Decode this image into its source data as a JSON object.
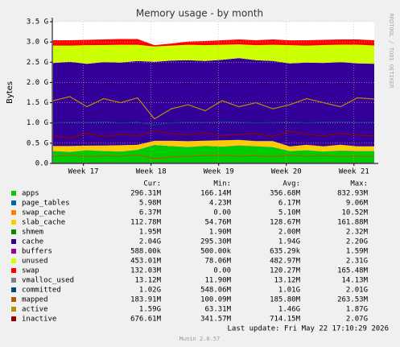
{
  "chart_data": {
    "type": "area",
    "title": "Memory usage - by month",
    "y_label": "Bytes",
    "watermark": "RRDTOOL / TOBI OETIKER",
    "x": [
      16.55,
      16.8,
      17.05,
      17.3,
      17.55,
      17.8,
      18.05,
      18.3,
      18.55,
      18.8,
      19.05,
      19.3,
      19.55,
      19.8,
      20.05,
      20.3,
      20.55,
      20.8,
      21.05,
      21.3
    ],
    "xlim": [
      16.54,
      21.3
    ],
    "xticks": [
      {
        "value": 17,
        "label": "Week 17"
      },
      {
        "value": 18,
        "label": "Week 18"
      },
      {
        "value": 19,
        "label": "Week 19"
      },
      {
        "value": 20,
        "label": "Week 20"
      },
      {
        "value": 21,
        "label": "Week 21"
      }
    ],
    "ylim": [
      0,
      3.5
    ],
    "yticks": [
      {
        "value": 0,
        "label": "0.0"
      },
      {
        "value": 0.5,
        "label": "0.5 G"
      },
      {
        "value": 1,
        "label": "1.0 G"
      },
      {
        "value": 1.5,
        "label": "1.5 G"
      },
      {
        "value": 2,
        "label": "2.0 G"
      },
      {
        "value": 2.5,
        "label": "2.5 G"
      },
      {
        "value": 3,
        "label": "3.0 G"
      },
      {
        "value": 3.5,
        "label": "3.5 G"
      }
    ],
    "grid": true,
    "legend_columns": [
      "Cur:",
      "Min:",
      "Avg:",
      "Max:"
    ],
    "series": [
      {
        "name": "apps",
        "type": "area",
        "color": "#00CC00",
        "stats": [
          "296.31M",
          "166.14M",
          "356.68M",
          "832.93M"
        ],
        "values": [
          0.3,
          0.28,
          0.32,
          0.3,
          0.29,
          0.33,
          0.45,
          0.42,
          0.4,
          0.43,
          0.41,
          0.44,
          0.42,
          0.4,
          0.3,
          0.32,
          0.29,
          0.31,
          0.3,
          0.3
        ]
      },
      {
        "name": "page_tables",
        "type": "area",
        "color": "#0066B3",
        "stats": [
          "5.98M",
          "4.23M",
          "6.17M",
          "9.06M"
        ],
        "values": [
          0.006,
          0.006,
          0.006,
          0.006,
          0.006,
          0.006,
          0.007,
          0.007,
          0.006,
          0.006,
          0.006,
          0.006,
          0.006,
          0.006,
          0.006,
          0.006,
          0.006,
          0.006,
          0.006,
          0.006
        ]
      },
      {
        "name": "swap_cache",
        "type": "area",
        "color": "#FF8000",
        "stats": [
          "6.37M",
          "0.00",
          "5.10M",
          "10.52M"
        ],
        "values": [
          0.005,
          0.005,
          0.005,
          0.006,
          0.005,
          0.005,
          0.002,
          0.003,
          0.004,
          0.005,
          0.005,
          0.005,
          0.005,
          0.005,
          0.004,
          0.005,
          0.006,
          0.006,
          0.006,
          0.006
        ]
      },
      {
        "name": "slab_cache",
        "type": "area",
        "color": "#FFCC00",
        "stats": [
          "112.78M",
          "54.76M",
          "128.67M",
          "161.88M"
        ],
        "values": [
          0.12,
          0.14,
          0.11,
          0.13,
          0.15,
          0.12,
          0.1,
          0.13,
          0.14,
          0.12,
          0.15,
          0.13,
          0.12,
          0.14,
          0.11,
          0.13,
          0.12,
          0.14,
          0.11,
          0.11
        ]
      },
      {
        "name": "shmem",
        "type": "line",
        "color": "#008F00",
        "stats": [
          "1.95M",
          "1.90M",
          "2.00M",
          "2.32M"
        ],
        "values": [
          0.002,
          0.002,
          0.002,
          0.002,
          0.002,
          0.002,
          0.002,
          0.002,
          0.002,
          0.002,
          0.002,
          0.002,
          0.002,
          0.002,
          0.002,
          0.002,
          0.002,
          0.002,
          0.002,
          0.002
        ]
      },
      {
        "name": "cache",
        "type": "area",
        "color": "#330099",
        "stats": [
          "2.04G",
          "295.30M",
          "1.94G",
          "2.20G"
        ],
        "values": [
          2.05,
          2.08,
          2.02,
          2.06,
          2.04,
          2.07,
          1.95,
          1.98,
          2.0,
          1.97,
          1.99,
          2.02,
          2.0,
          1.98,
          2.05,
          2.03,
          2.06,
          2.04,
          2.05,
          2.04
        ]
      },
      {
        "name": "buffers",
        "type": "area",
        "color": "#990099",
        "stats": [
          "588.00k",
          "500.00k",
          "635.29k",
          "1.59M"
        ],
        "values": [
          0.0006,
          0.0006,
          0.0006,
          0.0006,
          0.0006,
          0.0006,
          0.0006,
          0.0006,
          0.0006,
          0.0006,
          0.0006,
          0.0006,
          0.0006,
          0.0006,
          0.0006,
          0.0006,
          0.0006,
          0.0006,
          0.0006,
          0.0006
        ]
      },
      {
        "name": "unused",
        "type": "area",
        "color": "#CCFF00",
        "stats": [
          "453.01M",
          "78.06M",
          "482.97M",
          "2.31G"
        ],
        "values": [
          0.43,
          0.4,
          0.46,
          0.42,
          0.44,
          0.4,
          0.38,
          0.37,
          0.38,
          0.39,
          0.37,
          0.34,
          0.37,
          0.4,
          0.45,
          0.42,
          0.44,
          0.43,
          0.46,
          0.45
        ]
      },
      {
        "name": "swap",
        "type": "area",
        "color": "#FF0000",
        "stats": [
          "132.03M",
          "0.00",
          "120.27M",
          "165.48M"
        ],
        "values": [
          0.13,
          0.13,
          0.13,
          0.14,
          0.14,
          0.14,
          0.03,
          0.05,
          0.08,
          0.1,
          0.11,
          0.12,
          0.12,
          0.13,
          0.12,
          0.13,
          0.13,
          0.13,
          0.13,
          0.13
        ]
      },
      {
        "name": "vmalloc_used",
        "type": "line",
        "color": "#808080",
        "stats": [
          "13.12M",
          "11.90M",
          "13.12M",
          "14.13M"
        ],
        "values": [
          0.013,
          0.013,
          0.013,
          0.013,
          0.013,
          0.013,
          0.012,
          0.013,
          0.013,
          0.013,
          0.013,
          0.013,
          0.013,
          0.013,
          0.013,
          0.013,
          0.013,
          0.013,
          0.013,
          0.013
        ]
      },
      {
        "name": "committed",
        "type": "line",
        "color": "#00487D",
        "stats": [
          "1.02G",
          "548.06M",
          "1.01G",
          "2.01G"
        ],
        "values": [
          1.0,
          1.02,
          1.01,
          1.03,
          1.0,
          1.02,
          0.95,
          1.0,
          1.02,
          1.01,
          1.03,
          1.02,
          1.0,
          1.01,
          1.02,
          1.0,
          1.02,
          1.03,
          1.01,
          1.02
        ]
      },
      {
        "name": "mapped",
        "type": "line",
        "color": "#B35A00",
        "stats": [
          "183.91M",
          "100.09M",
          "185.80M",
          "263.53M"
        ],
        "values": [
          0.18,
          0.2,
          0.17,
          0.19,
          0.18,
          0.21,
          0.12,
          0.16,
          0.18,
          0.19,
          0.2,
          0.18,
          0.19,
          0.17,
          0.2,
          0.18,
          0.19,
          0.18,
          0.18,
          0.18
        ]
      },
      {
        "name": "active",
        "type": "line",
        "color": "#B38F00",
        "stats": [
          "1.59G",
          "63.31M",
          "1.46G",
          "1.87G"
        ],
        "values": [
          1.55,
          1.65,
          1.4,
          1.6,
          1.5,
          1.62,
          1.1,
          1.35,
          1.45,
          1.3,
          1.55,
          1.4,
          1.5,
          1.35,
          1.45,
          1.6,
          1.5,
          1.4,
          1.62,
          1.59
        ]
      },
      {
        "name": "inactive",
        "type": "line",
        "color": "#990000",
        "stats": [
          "676.61M",
          "341.57M",
          "714.15M",
          "2.07G"
        ],
        "values": [
          0.7,
          0.62,
          0.75,
          0.66,
          0.72,
          0.68,
          0.8,
          0.74,
          0.7,
          0.76,
          0.68,
          0.72,
          0.74,
          0.66,
          0.8,
          0.72,
          0.68,
          0.74,
          0.7,
          0.68
        ]
      }
    ],
    "last_update": "Last update: Fri May 22 17:10:29 2026",
    "footer": "Munin 2.0.57"
  }
}
